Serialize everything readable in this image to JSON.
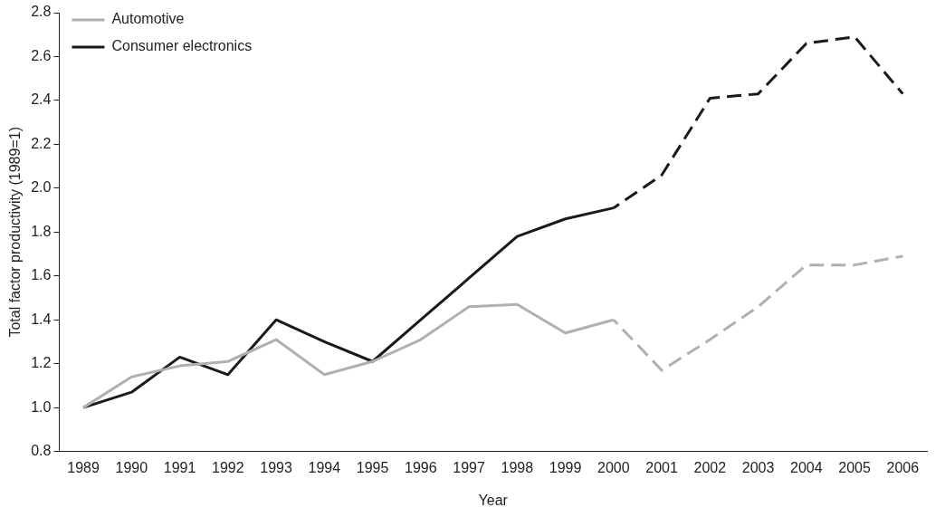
{
  "chart_data": {
    "type": "line",
    "xlabel": "Year",
    "ylabel": "Total factor productivity (1989=1)",
    "categories": [
      "1989",
      "1990",
      "1991",
      "1992",
      "1993",
      "1994",
      "1995",
      "1996",
      "1997",
      "1998",
      "1999",
      "2000",
      "2001",
      "2002",
      "2003",
      "2004",
      "2005",
      "2006"
    ],
    "series": [
      {
        "name": "Automotive",
        "color": "#b0b0b0",
        "line_style": "solid",
        "values": [
          1.0,
          1.14,
          1.19,
          1.21,
          1.31,
          1.15,
          1.21,
          1.31,
          1.46,
          1.47,
          1.34,
          1.4,
          null,
          null,
          null,
          null,
          null,
          null
        ]
      },
      {
        "name": "Consumer electronics",
        "color": "#1a1a1a",
        "line_style": "solid",
        "values": [
          1.0,
          1.07,
          1.23,
          1.15,
          1.4,
          1.3,
          1.21,
          1.4,
          1.59,
          1.78,
          1.86,
          1.91,
          null,
          null,
          null,
          null,
          null,
          null
        ]
      },
      {
        "color": "#b0b0b0",
        "line_style": "dashed",
        "values": [
          null,
          null,
          null,
          null,
          null,
          null,
          null,
          null,
          null,
          null,
          null,
          1.4,
          1.17,
          1.31,
          1.46,
          1.65,
          1.65,
          1.69
        ]
      },
      {
        "color": "#1a1a1a",
        "line_style": "dashed",
        "values": [
          null,
          null,
          null,
          null,
          null,
          null,
          null,
          null,
          null,
          null,
          null,
          1.91,
          2.06,
          2.41,
          2.43,
          2.66,
          2.69,
          2.43
        ]
      }
    ],
    "ylim": [
      0.8,
      2.8
    ],
    "yticks": [
      {
        "value": 0.8,
        "label": "0.8"
      },
      {
        "value": 1.0,
        "label": "1.0"
      },
      {
        "value": 1.2,
        "label": "1.2"
      },
      {
        "value": 1.4,
        "label": "1.4"
      },
      {
        "value": 1.6,
        "label": "1.6"
      },
      {
        "value": 1.8,
        "label": "1.8"
      },
      {
        "value": 2.0,
        "label": "2.0"
      },
      {
        "value": 2.2,
        "label": "2.2"
      },
      {
        "value": 2.4,
        "label": "2.4"
      },
      {
        "value": 2.6,
        "label": "2.6"
      },
      {
        "value": 2.8,
        "label": "2.8"
      }
    ],
    "grid": false,
    "legend": "top left",
    "marker": "none"
  }
}
